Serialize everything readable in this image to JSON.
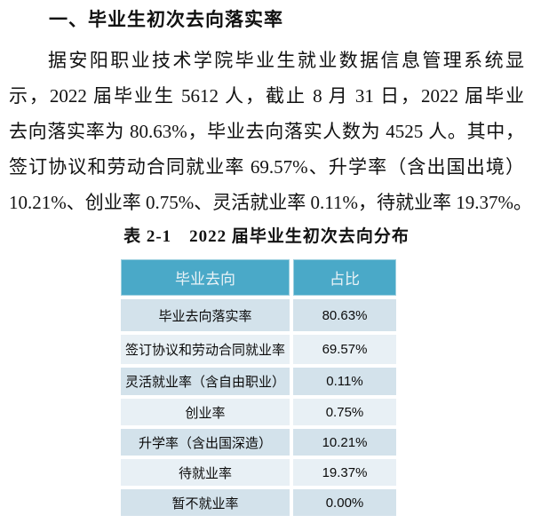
{
  "page": {
    "heading": "一、毕业生初次去向落实率",
    "paragraph": {
      "lines": [
        "据安阳职业技术学院毕业生就业数据信息管理系统显",
        "示，2022 届毕业生 5612 人，截止 8 月 31 日，2022 届毕业",
        "去向落实率为 80.63%，毕业去向落实人数为 4525 人。其中，",
        "签订协议和劳动合同就业率 69.57%、升学率（含出国出境）",
        "10.21%、创业率 0.75%、灵活就业率 0.11%，待就业率 19.37%。"
      ]
    },
    "table": {
      "title": "表 2-1　2022 届毕业生初次去向分布",
      "headers": [
        "毕业去向",
        "占比"
      ],
      "rows": [
        {
          "label": "毕业去向落实率",
          "value": "80.63%"
        },
        {
          "label": "签订协议和劳动合同就业率",
          "value": "69.57%"
        },
        {
          "label": "灵活就业率（含自由职业）",
          "value": "0.11%"
        },
        {
          "label": "创业率",
          "value": "0.75%"
        },
        {
          "label": "升学率（含出国深造）",
          "value": "10.21%"
        },
        {
          "label": "待就业率",
          "value": "19.37%"
        },
        {
          "label": "暂不就业率",
          "value": "0.00%"
        }
      ]
    },
    "colors": {
      "header_bg": "#4aa9c8",
      "header_text": "#eaf3f7",
      "row_dark": "#d3e2eb",
      "row_light": "#e8f0f5"
    }
  }
}
